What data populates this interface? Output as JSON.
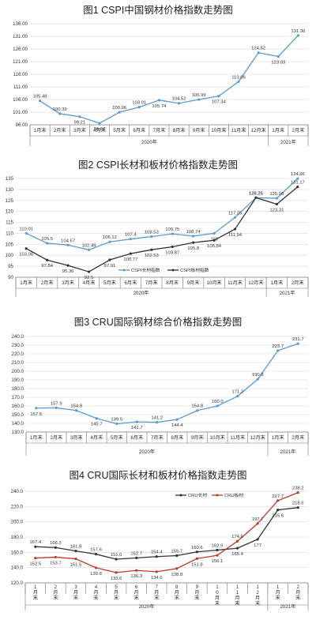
{
  "chart_data": [
    {
      "type": "line",
      "title": "图1 CSPI中国钢材价格指数走势图",
      "categories": [
        "1月末",
        "2月末",
        "3月末",
        "4月末",
        "5月末",
        "6月末",
        "7月末",
        "8月末",
        "9月末",
        "10月末",
        "11月末",
        "12月末",
        "1月末",
        "2月末"
      ],
      "groups": [
        {
          "label": "2020年",
          "from": 0,
          "to": 11
        },
        {
          "label": "2021年",
          "from": 12,
          "to": 13
        }
      ],
      "ylim": [
        96,
        136
      ],
      "yticks": [
        "96.00",
        "101.00",
        "106.00",
        "111.00",
        "116.00",
        "121.00",
        "126.00",
        "131.00",
        "136.00"
      ],
      "grid": true,
      "series": [
        {
          "color": "#5b9bd5",
          "values": [
            105.48,
            100.39,
            99.21,
            96.62,
            100.96,
            103.01,
            105.74,
            104.52,
            105.99,
            107.34,
            113.06,
            124.52,
            123.03,
            131.36
          ],
          "labels": [
            "105.48",
            "100.39",
            "99.21",
            "96.62",
            "100.96",
            "103.01",
            "105.74",
            "104.52",
            "105.99",
            "107.34",
            "113.06",
            "124.52",
            "123.03",
            "131.36"
          ]
        }
      ]
    },
    {
      "type": "line",
      "title": "图2 CSPI长材和板材价格指数走势图",
      "categories": [
        "1月末",
        "2月末",
        "3月末",
        "4月末",
        "5月末",
        "6月末",
        "7月末",
        "8月末",
        "9月末",
        "10月末",
        "11月末",
        "12月末",
        "1月末",
        "2月末"
      ],
      "groups": [
        {
          "label": "2020年",
          "from": 0,
          "to": 11
        },
        {
          "label": "2021年",
          "from": 12,
          "to": 13
        }
      ],
      "ylim": [
        90,
        135
      ],
      "yticks": [
        "90",
        "95",
        "100",
        "105",
        "110",
        "115",
        "120",
        "125",
        "130",
        "135"
      ],
      "grid": true,
      "legend": "bottom",
      "series": [
        {
          "name": "CSPI长材指数",
          "color": "#5b9bd5",
          "values": [
            110.01,
            105.5,
            104.67,
            102.49,
            106.12,
            107.4,
            108.53,
            109.75,
            108.74,
            110.0,
            117.25,
            126.25,
            125.98,
            134.96
          ],
          "labels": [
            "110.01",
            "105.5",
            "104.67",
            "102.49",
            "106.12",
            "107.4",
            "108.53",
            "109.75",
            "108.74",
            "110",
            "117.25",
            "126.25",
            "125.98",
            "134.96"
          ]
        },
        {
          "name": "CSPI板材指数",
          "color": "#333333",
          "values": [
            103.06,
            97.84,
            95.36,
            92.5,
            97.91,
            100.77,
            102.53,
            103.87,
            105.8,
            106.84,
            111.94,
            126.25,
            123.31,
            131.17
          ],
          "labels": [
            "103.06",
            "97.84",
            "95.36",
            "92.5",
            "97.91",
            "100.77",
            "102.53",
            "103.87",
            "105.8",
            "106.84",
            "111.94",
            "126.25",
            "123.31",
            "131.17"
          ]
        }
      ]
    },
    {
      "type": "line",
      "title": "图3 CRU国际钢材综合价格指数走势图",
      "categories": [
        "1月末",
        "2月末",
        "3月末",
        "4月末",
        "5月末",
        "6月末",
        "7月末",
        "8月末",
        "9月末",
        "10月末",
        "11月末",
        "12月末",
        "1月末",
        "2月末"
      ],
      "groups": [
        {
          "label": "2020年",
          "from": 0,
          "to": 11
        },
        {
          "label": "2021年",
          "from": 12,
          "to": 13
        }
      ],
      "ylim": [
        130,
        240
      ],
      "yticks": [
        "130.0",
        "140.0",
        "150.0",
        "160.0",
        "170.0",
        "180.0",
        "190.0",
        "200.0",
        "210.0",
        "220.0",
        "230.0",
        "240.0"
      ],
      "grid": true,
      "series": [
        {
          "color": "#5b9bd5",
          "values": [
            157.5,
            157.9,
            154.8,
            145.7,
            139.5,
            141.7,
            141.2,
            144.4,
            154.8,
            160.0,
            171.2,
            190.8,
            223.7,
            231.7
          ],
          "labels": [
            "157.5",
            "157.9",
            "154.8",
            "145.7",
            "139.5",
            "141.7",
            "141.2",
            "144.4",
            "154.8",
            "160.0",
            "171.2",
            "190.8",
            "223.7",
            "231.7"
          ]
        }
      ]
    },
    {
      "type": "line",
      "title": "图4 CRU国际长材和板材价格指数走势图",
      "categories": [
        "1月末",
        "2月末",
        "3月末",
        "4月末",
        "5月末",
        "6月末",
        "7月末",
        "8月末",
        "9月末",
        "10月末",
        "11月末",
        "12月末",
        "1月末",
        "2月末"
      ],
      "groups": [
        {
          "label": "2020年",
          "from": 0,
          "to": 11
        },
        {
          "label": "2021年",
          "from": 12,
          "to": 13
        }
      ],
      "ylim": [
        120,
        240
      ],
      "yticks": [
        "120.0",
        "140.0",
        "160.0",
        "180.0",
        "200.0",
        "220.0",
        "240.0"
      ],
      "grid": true,
      "legend": "top-right",
      "series": [
        {
          "name": "CRU长材",
          "color": "#333333",
          "values": [
            167.4,
            166.3,
            161.8,
            157.6,
            151.0,
            152.7,
            154.4,
            155.7,
            160.6,
            162.9,
            165.4,
            177,
            215.6,
            218.6
          ],
          "labels": [
            "167.4",
            "166.3",
            "161.8",
            "157.6",
            "151.0",
            "152.7",
            "154.4",
            "155.7",
            "160.6",
            "162.9",
            "165.4",
            "177",
            "215.6",
            "218.6"
          ]
        },
        {
          "name": "CRU板材",
          "color": "#c0392b",
          "values": [
            152.5,
            153.7,
            151.5,
            139.8,
            133.6,
            136.3,
            134.6,
            138.8,
            151.8,
            156.1,
            174.6,
            197.7,
            227.7,
            238.2
          ],
          "labels": [
            "152.5",
            "153.7",
            "151.5",
            "139.8",
            "133.6",
            "136.3",
            "134.6",
            "138.8",
            "151.8",
            "156.1",
            "174.6",
            "197.7",
            "227.7",
            "238.2"
          ]
        }
      ]
    }
  ]
}
